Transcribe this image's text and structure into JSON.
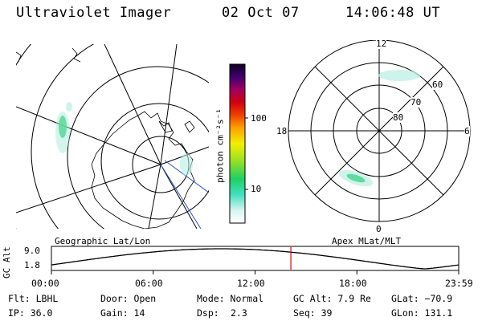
{
  "header": {
    "title": "Ultraviolet Imager",
    "date": "02 Oct 07",
    "time": "14:06:48 UT"
  },
  "geo_panel": {
    "label": "Geographic Lat/Lon"
  },
  "colorbar": {
    "unit_label": "photon cm⁻²s⁻¹",
    "tick_100": "100",
    "tick_10": "10"
  },
  "polar_panel": {
    "label": "Apex MLat/MLT",
    "mlt_top": "12",
    "mlt_left": "18",
    "mlt_right": "6",
    "mlt_bottom": "0",
    "lat_60": "60",
    "lat_70": "70",
    "lat_80": "80"
  },
  "altitude_plot": {
    "axis_label": "GC Alt",
    "y_max_label": "9.0",
    "y_min_label": "1.8",
    "x_ticks": [
      "00:00",
      "06:00",
      "12:00",
      "18:00",
      "23:59"
    ],
    "current_hour": 14.11,
    "current_line_color": "#e00000"
  },
  "status": {
    "filter": "Flt: LBHL",
    "door": "Door: Open",
    "mode": "Mode: Normal",
    "gc_alt": "GC Alt: 7.9 Re",
    "glat": "GLat: −70.9",
    "ip": "IP: 36.0",
    "gain": "Gain: 14",
    "dsp_label": "Dsp:",
    "dsp_value": "2.3",
    "seq": "Seq: 39",
    "glon": "GLon: 131.1"
  }
}
